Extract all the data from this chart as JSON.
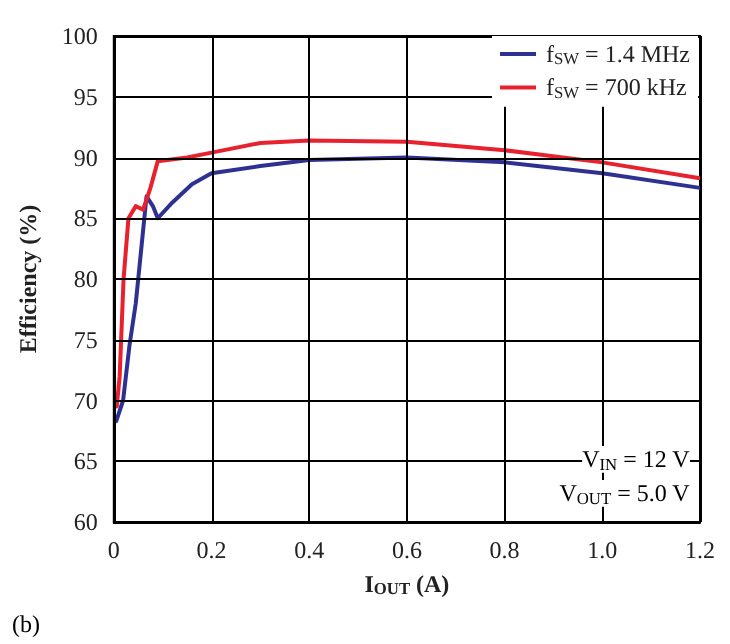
{
  "chart_data": {
    "type": "line",
    "xlabel": "I$_{OUT}$ (A)",
    "ylabel": "Efficiency (%)",
    "series": [
      {
        "name": "f$_{SW}$ = 1.4 MHz",
        "color": "#2e3192",
        "x": [
          0.005,
          0.019,
          0.032,
          0.045,
          0.055,
          0.067,
          0.08,
          0.09,
          0.12,
          0.16,
          0.2,
          0.3,
          0.4,
          0.6,
          0.8,
          1.0,
          1.2
        ],
        "values": [
          68.3,
          70,
          74.5,
          78,
          82,
          86.8,
          86,
          85,
          86.3,
          87.8,
          88.7,
          89.3,
          89.8,
          90,
          89.6,
          88.7,
          87.5
        ]
      },
      {
        "name": "f$_{SW}$ = 700 kHz",
        "color": "#e8212e",
        "x": [
          0.006,
          0.012,
          0.02,
          0.03,
          0.045,
          0.06,
          0.075,
          0.09,
          0.15,
          0.2,
          0.3,
          0.4,
          0.6,
          0.8,
          1.0,
          1.2
        ],
        "values": [
          69.5,
          72,
          80,
          85,
          86,
          85.7,
          87.5,
          89.7,
          90,
          90.4,
          91.2,
          91.4,
          91.3,
          90.6,
          89.6,
          88.3
        ]
      }
    ],
    "xlim": [
      0,
      1.2
    ],
    "xticks": [
      0,
      0.2,
      0.4,
      0.6,
      0.8,
      {
        "value": 1,
        "label": "1.0"
      },
      1.2
    ],
    "ylim": [
      60,
      100
    ],
    "yticks": [
      60,
      65,
      70,
      75,
      80,
      85,
      90,
      95,
      100
    ],
    "grid": true,
    "legend": "top right",
    "marker": "none",
    "line_style": "solid",
    "annotations": [
      "V$_{IN}$ = 12 V",
      "V$_{OUT}$ = 5.0 V",
      "(b)"
    ]
  }
}
